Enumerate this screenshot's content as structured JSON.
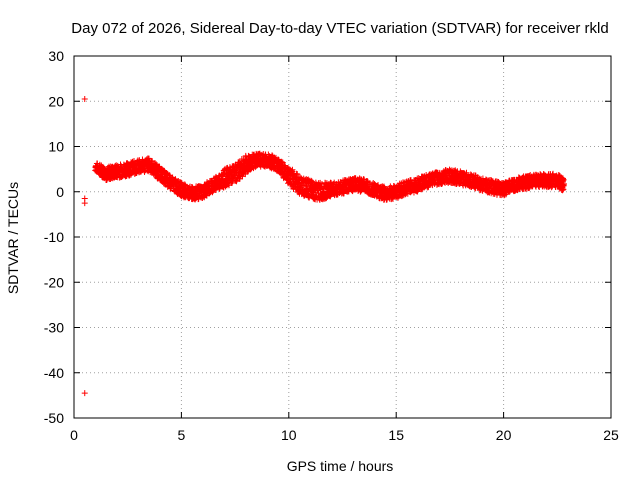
{
  "chart_data": {
    "type": "scatter",
    "title": "Day 072 of 2026, Sidereal Day-to-day VTEC variation (SDTVAR) for receiver rkld",
    "xlabel": "GPS time / hours",
    "ylabel": "SDTVAR / TECUs",
    "xlim": [
      0,
      25
    ],
    "ylim": [
      -50,
      30
    ],
    "x_ticks": [
      0,
      5,
      10,
      15,
      20,
      25
    ],
    "y_ticks": [
      30,
      20,
      10,
      0,
      -10,
      -20,
      -30,
      -40,
      -50
    ],
    "grid": true,
    "marker": "+",
    "series_color": "#ff0000",
    "outliers": [
      {
        "x": 0.5,
        "y": 20.5
      },
      {
        "x": 0.5,
        "y": -1.5
      },
      {
        "x": 0.5,
        "y": -2.5
      },
      {
        "x": 0.5,
        "y": -44.5
      }
    ],
    "band": [
      {
        "x": 1.0,
        "y": 5.5,
        "spread": 1.0
      },
      {
        "x": 1.5,
        "y": 4.0,
        "spread": 1.5
      },
      {
        "x": 2.0,
        "y": 4.5,
        "spread": 1.5
      },
      {
        "x": 2.5,
        "y": 5.0,
        "spread": 1.5
      },
      {
        "x": 3.0,
        "y": 5.5,
        "spread": 1.5
      },
      {
        "x": 3.5,
        "y": 6.0,
        "spread": 1.5
      },
      {
        "x": 4.0,
        "y": 4.0,
        "spread": 1.5
      },
      {
        "x": 4.5,
        "y": 2.0,
        "spread": 1.5
      },
      {
        "x": 5.0,
        "y": 0.5,
        "spread": 1.5
      },
      {
        "x": 5.5,
        "y": -0.5,
        "spread": 1.5
      },
      {
        "x": 6.0,
        "y": 0.0,
        "spread": 1.5
      },
      {
        "x": 6.5,
        "y": 1.5,
        "spread": 1.5
      },
      {
        "x": 7.0,
        "y": 3.0,
        "spread": 2.0
      },
      {
        "x": 7.5,
        "y": 4.0,
        "spread": 2.0
      },
      {
        "x": 8.0,
        "y": 6.0,
        "spread": 2.0
      },
      {
        "x": 8.5,
        "y": 7.0,
        "spread": 1.5
      },
      {
        "x": 9.0,
        "y": 7.0,
        "spread": 1.5
      },
      {
        "x": 9.5,
        "y": 6.0,
        "spread": 1.5
      },
      {
        "x": 10.0,
        "y": 3.5,
        "spread": 2.0
      },
      {
        "x": 10.5,
        "y": 1.5,
        "spread": 2.0
      },
      {
        "x": 11.0,
        "y": 0.5,
        "spread": 2.0
      },
      {
        "x": 11.5,
        "y": 0.0,
        "spread": 2.0
      },
      {
        "x": 12.0,
        "y": 0.5,
        "spread": 1.5
      },
      {
        "x": 12.5,
        "y": 1.0,
        "spread": 1.5
      },
      {
        "x": 13.0,
        "y": 1.5,
        "spread": 1.5
      },
      {
        "x": 13.5,
        "y": 1.5,
        "spread": 1.5
      },
      {
        "x": 14.0,
        "y": 0.5,
        "spread": 1.5
      },
      {
        "x": 14.5,
        "y": -0.5,
        "spread": 1.5
      },
      {
        "x": 15.0,
        "y": 0.0,
        "spread": 1.5
      },
      {
        "x": 15.5,
        "y": 1.0,
        "spread": 1.5
      },
      {
        "x": 16.0,
        "y": 1.5,
        "spread": 1.5
      },
      {
        "x": 16.5,
        "y": 2.5,
        "spread": 1.5
      },
      {
        "x": 17.0,
        "y": 3.0,
        "spread": 1.5
      },
      {
        "x": 17.5,
        "y": 3.5,
        "spread": 1.5
      },
      {
        "x": 18.0,
        "y": 3.0,
        "spread": 1.5
      },
      {
        "x": 18.5,
        "y": 2.5,
        "spread": 1.5
      },
      {
        "x": 19.0,
        "y": 1.5,
        "spread": 1.5
      },
      {
        "x": 19.5,
        "y": 1.0,
        "spread": 1.5
      },
      {
        "x": 20.0,
        "y": 0.5,
        "spread": 1.5
      },
      {
        "x": 20.5,
        "y": 1.5,
        "spread": 1.5
      },
      {
        "x": 21.0,
        "y": 2.0,
        "spread": 1.5
      },
      {
        "x": 21.5,
        "y": 2.5,
        "spread": 1.5
      },
      {
        "x": 22.0,
        "y": 2.5,
        "spread": 1.5
      },
      {
        "x": 22.5,
        "y": 2.5,
        "spread": 1.5
      },
      {
        "x": 22.8,
        "y": 1.5,
        "spread": 1.5
      }
    ]
  }
}
